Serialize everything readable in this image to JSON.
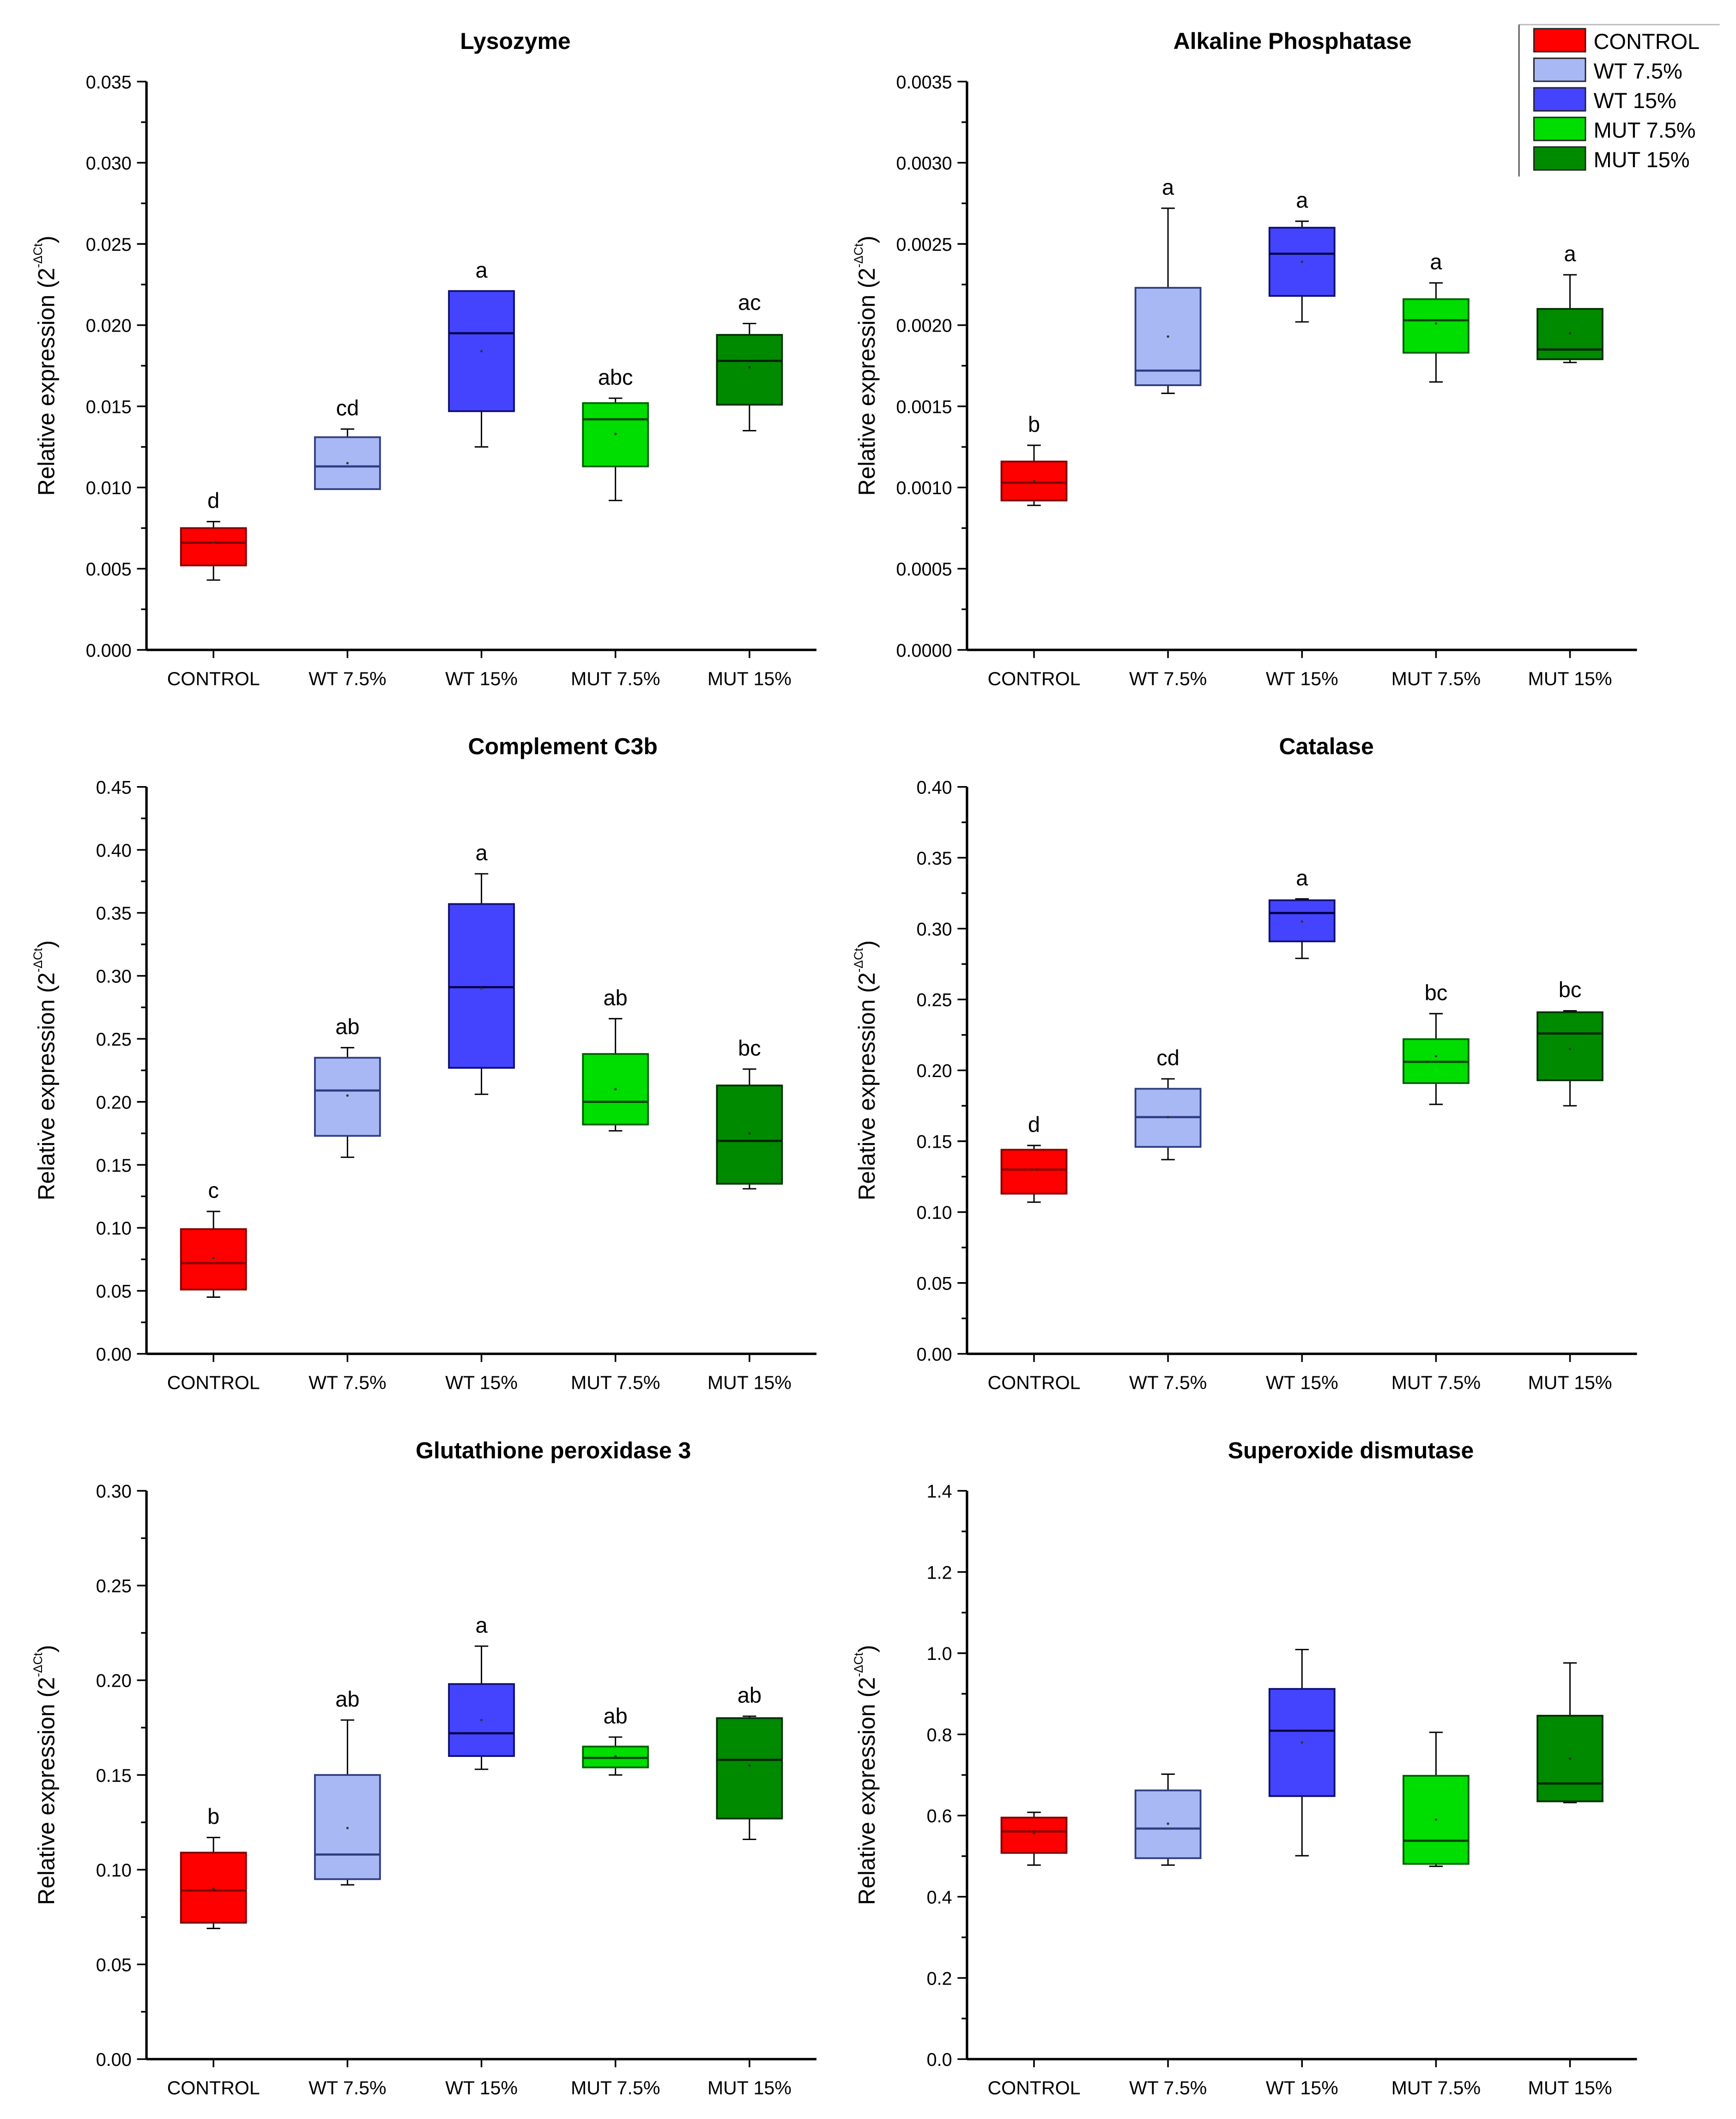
{
  "legend": {
    "items": [
      {
        "label": "CONTROL",
        "color": "#ff0000"
      },
      {
        "label": "WT 7.5%",
        "color": "#a8b8f4"
      },
      {
        "label": "WT 15%",
        "color": "#4444ff"
      },
      {
        "label": "MUT 7.5%",
        "color": "#00dd00"
      },
      {
        "label": "MUT 15%",
        "color": "#008a00"
      }
    ]
  },
  "chart_data": [
    {
      "type": "box",
      "title": "Lysozyme",
      "ylabel": "Relative expression (2",
      "ylabel_sup": "-ΔCt",
      "ylabel_end": ")",
      "categories": [
        "CONTROL",
        "WT 7.5%",
        "WT 15%",
        "MUT 7.5%",
        "MUT 15%"
      ],
      "ylim": [
        0,
        0.035
      ],
      "yticks": [
        "0.000",
        "0.005",
        "0.010",
        "0.015",
        "0.020",
        "0.025",
        "0.030",
        "0.035"
      ],
      "boxes": [
        {
          "min": 0.0043,
          "q1": 0.0052,
          "median": 0.0066,
          "q3": 0.0075,
          "max": 0.0079,
          "mean": 0.0066,
          "letter": "d"
        },
        {
          "min": 0.0099,
          "q1": 0.0099,
          "median": 0.0113,
          "q3": 0.0131,
          "max": 0.0136,
          "mean": 0.0115,
          "letter": "cd"
        },
        {
          "min": 0.0125,
          "q1": 0.0147,
          "median": 0.0195,
          "q3": 0.0221,
          "max": 0.0221,
          "mean": 0.0184,
          "letter": "a"
        },
        {
          "min": 0.0092,
          "q1": 0.0113,
          "median": 0.0142,
          "q3": 0.0152,
          "max": 0.0155,
          "mean": 0.0133,
          "letter": "abc"
        },
        {
          "min": 0.0135,
          "q1": 0.0151,
          "median": 0.0178,
          "q3": 0.0194,
          "max": 0.0201,
          "mean": 0.0174,
          "letter": "ac"
        }
      ]
    },
    {
      "type": "box",
      "title": "Alkaline Phosphatase",
      "ylabel": "Relative expression (2",
      "ylabel_sup": "-ΔCt",
      "ylabel_end": ")",
      "categories": [
        "CONTROL",
        "WT 7.5%",
        "WT 15%",
        "MUT 7.5%",
        "MUT 15%"
      ],
      "ylim": [
        0,
        0.0035
      ],
      "yticks": [
        "0.0000",
        "0.0005",
        "0.0010",
        "0.0015",
        "0.0020",
        "0.0025",
        "0.0030",
        "0.0035"
      ],
      "boxes": [
        {
          "min": 0.00089,
          "q1": 0.00092,
          "median": 0.00103,
          "q3": 0.00116,
          "max": 0.00126,
          "mean": 0.00104,
          "letter": "b"
        },
        {
          "min": 0.00158,
          "q1": 0.00163,
          "median": 0.00172,
          "q3": 0.00223,
          "max": 0.00272,
          "mean": 0.00193,
          "letter": "a"
        },
        {
          "min": 0.00202,
          "q1": 0.00218,
          "median": 0.00244,
          "q3": 0.0026,
          "max": 0.00264,
          "mean": 0.00239,
          "letter": "a"
        },
        {
          "min": 0.00165,
          "q1": 0.00183,
          "median": 0.00203,
          "q3": 0.00216,
          "max": 0.00226,
          "mean": 0.00201,
          "letter": "a"
        },
        {
          "min": 0.00177,
          "q1": 0.00179,
          "median": 0.00185,
          "q3": 0.0021,
          "max": 0.00231,
          "mean": 0.00195,
          "letter": "a"
        }
      ]
    },
    {
      "type": "box",
      "title": "Complement C3b",
      "ylabel": "Relative expression (2",
      "ylabel_sup": "-ΔCt",
      "ylabel_end": ")",
      "categories": [
        "CONTROL",
        "WT 7.5%",
        "WT 15%",
        "MUT 7.5%",
        "MUT 15%"
      ],
      "ylim": [
        0,
        0.45
      ],
      "yticks": [
        "0.00",
        "0.05",
        "0.10",
        "0.15",
        "0.20",
        "0.25",
        "0.30",
        "0.35",
        "0.40",
        "0.45"
      ],
      "boxes": [
        {
          "min": 0.045,
          "q1": 0.051,
          "median": 0.072,
          "q3": 0.099,
          "max": 0.113,
          "mean": 0.076,
          "letter": "c"
        },
        {
          "min": 0.156,
          "q1": 0.173,
          "median": 0.209,
          "q3": 0.235,
          "max": 0.243,
          "mean": 0.205,
          "letter": "ab"
        },
        {
          "min": 0.206,
          "q1": 0.227,
          "median": 0.291,
          "q3": 0.357,
          "max": 0.381,
          "mean": 0.29,
          "letter": "a"
        },
        {
          "min": 0.177,
          "q1": 0.182,
          "median": 0.2,
          "q3": 0.238,
          "max": 0.266,
          "mean": 0.21,
          "letter": "ab"
        },
        {
          "min": 0.131,
          "q1": 0.135,
          "median": 0.169,
          "q3": 0.213,
          "max": 0.226,
          "mean": 0.175,
          "letter": "bc"
        }
      ]
    },
    {
      "type": "box",
      "title": "Catalase",
      "ylabel": "Relative expression (2",
      "ylabel_sup": "-ΔCt",
      "ylabel_end": ")",
      "categories": [
        "CONTROL",
        "WT 7.5%",
        "WT 15%",
        "MUT 7.5%",
        "MUT 15%"
      ],
      "ylim": [
        0,
        0.4
      ],
      "yticks": [
        "0.00",
        "0.05",
        "0.10",
        "0.15",
        "0.20",
        "0.25",
        "0.30",
        "0.35",
        "0.40"
      ],
      "boxes": [
        {
          "min": 0.107,
          "q1": 0.113,
          "median": 0.13,
          "q3": 0.144,
          "max": 0.147,
          "mean": 0.13,
          "letter": "d"
        },
        {
          "min": 0.137,
          "q1": 0.146,
          "median": 0.167,
          "q3": 0.187,
          "max": 0.194,
          "mean": 0.167,
          "letter": "cd"
        },
        {
          "min": 0.279,
          "q1": 0.291,
          "median": 0.311,
          "q3": 0.32,
          "max": 0.321,
          "mean": 0.305,
          "letter": "a"
        },
        {
          "min": 0.176,
          "q1": 0.191,
          "median": 0.206,
          "q3": 0.222,
          "max": 0.24,
          "mean": 0.21,
          "letter": "bc"
        },
        {
          "min": 0.175,
          "q1": 0.193,
          "median": 0.226,
          "q3": 0.241,
          "max": 0.242,
          "mean": 0.215,
          "letter": "bc"
        }
      ]
    },
    {
      "type": "box",
      "title": "Glutathione peroxidase 3",
      "ylabel": "Relative expression (2",
      "ylabel_sup": "-ΔCt",
      "ylabel_end": ")",
      "categories": [
        "CONTROL",
        "WT 7.5%",
        "WT 15%",
        "MUT 7.5%",
        "MUT 15%"
      ],
      "ylim": [
        0,
        0.3
      ],
      "yticks": [
        "0.00",
        "0.05",
        "0.10",
        "0.15",
        "0.20",
        "0.25",
        "0.30"
      ],
      "boxes": [
        {
          "min": 0.069,
          "q1": 0.072,
          "median": 0.089,
          "q3": 0.109,
          "max": 0.117,
          "mean": 0.09,
          "letter": "b"
        },
        {
          "min": 0.092,
          "q1": 0.095,
          "median": 0.108,
          "q3": 0.15,
          "max": 0.179,
          "mean": 0.122,
          "letter": "ab"
        },
        {
          "min": 0.153,
          "q1": 0.16,
          "median": 0.172,
          "q3": 0.198,
          "max": 0.218,
          "mean": 0.179,
          "letter": "a"
        },
        {
          "min": 0.15,
          "q1": 0.154,
          "median": 0.159,
          "q3": 0.165,
          "max": 0.17,
          "mean": 0.16,
          "letter": "ab"
        },
        {
          "min": 0.116,
          "q1": 0.127,
          "median": 0.158,
          "q3": 0.18,
          "max": 0.181,
          "mean": 0.155,
          "letter": "ab"
        }
      ]
    },
    {
      "type": "box",
      "title": "Superoxide dismutase",
      "ylabel": "Relative expression (2",
      "ylabel_sup": "-ΔCt",
      "ylabel_end": ")",
      "categories": [
        "CONTROL",
        "WT 7.5%",
        "WT 15%",
        "MUT 7.5%",
        "MUT 15%"
      ],
      "ylim": [
        0,
        1.4
      ],
      "yticks": [
        "0.0",
        "0.2",
        "0.4",
        "0.6",
        "0.8",
        "1.0",
        "1.2",
        "1.4"
      ],
      "boxes": [
        {
          "min": 0.478,
          "q1": 0.508,
          "median": 0.561,
          "q3": 0.595,
          "max": 0.608,
          "mean": 0.556,
          "letter": ""
        },
        {
          "min": 0.478,
          "q1": 0.495,
          "median": 0.568,
          "q3": 0.662,
          "max": 0.702,
          "mean": 0.58,
          "letter": ""
        },
        {
          "min": 0.501,
          "q1": 0.648,
          "median": 0.809,
          "q3": 0.912,
          "max": 1.009,
          "mean": 0.78,
          "letter": ""
        },
        {
          "min": 0.475,
          "q1": 0.481,
          "median": 0.538,
          "q3": 0.698,
          "max": 0.805,
          "mean": 0.59,
          "letter": ""
        },
        {
          "min": 0.632,
          "q1": 0.635,
          "median": 0.679,
          "q3": 0.846,
          "max": 0.976,
          "mean": 0.74,
          "letter": ""
        }
      ]
    }
  ]
}
